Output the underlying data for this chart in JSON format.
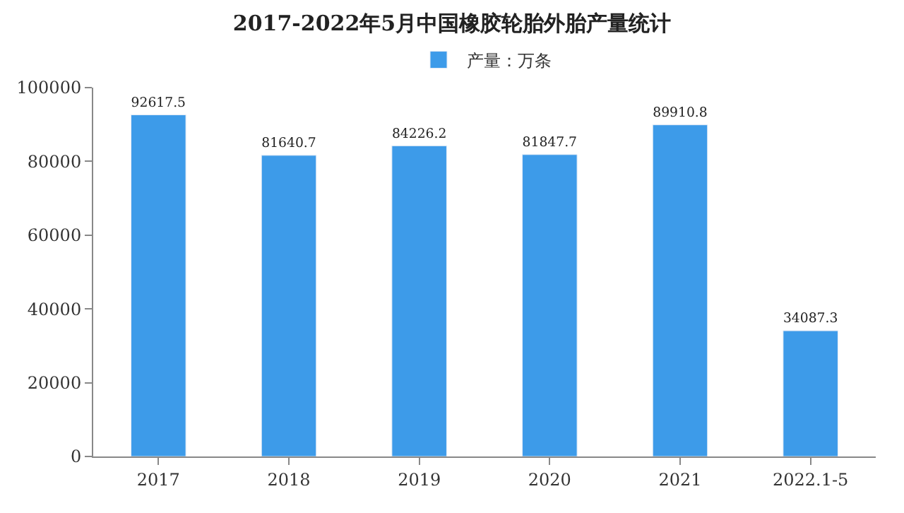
{
  "chart_data": {
    "type": "bar",
    "title": "2017-2022年5月中国橡胶轮胎外胎产量统计",
    "categories": [
      "2017",
      "2018",
      "2019",
      "2020",
      "2021",
      "2022.1-5"
    ],
    "series": [
      {
        "name": "产量：万条",
        "color": "#3d9be9",
        "values": [
          92617.5,
          81640.7,
          84226.2,
          81847.7,
          89910.8,
          34087.3
        ]
      }
    ],
    "ylim": [
      0,
      100000
    ],
    "yticks": [
      0,
      20000,
      40000,
      60000,
      80000,
      100000
    ],
    "data_labels": true,
    "legend": "top"
  }
}
